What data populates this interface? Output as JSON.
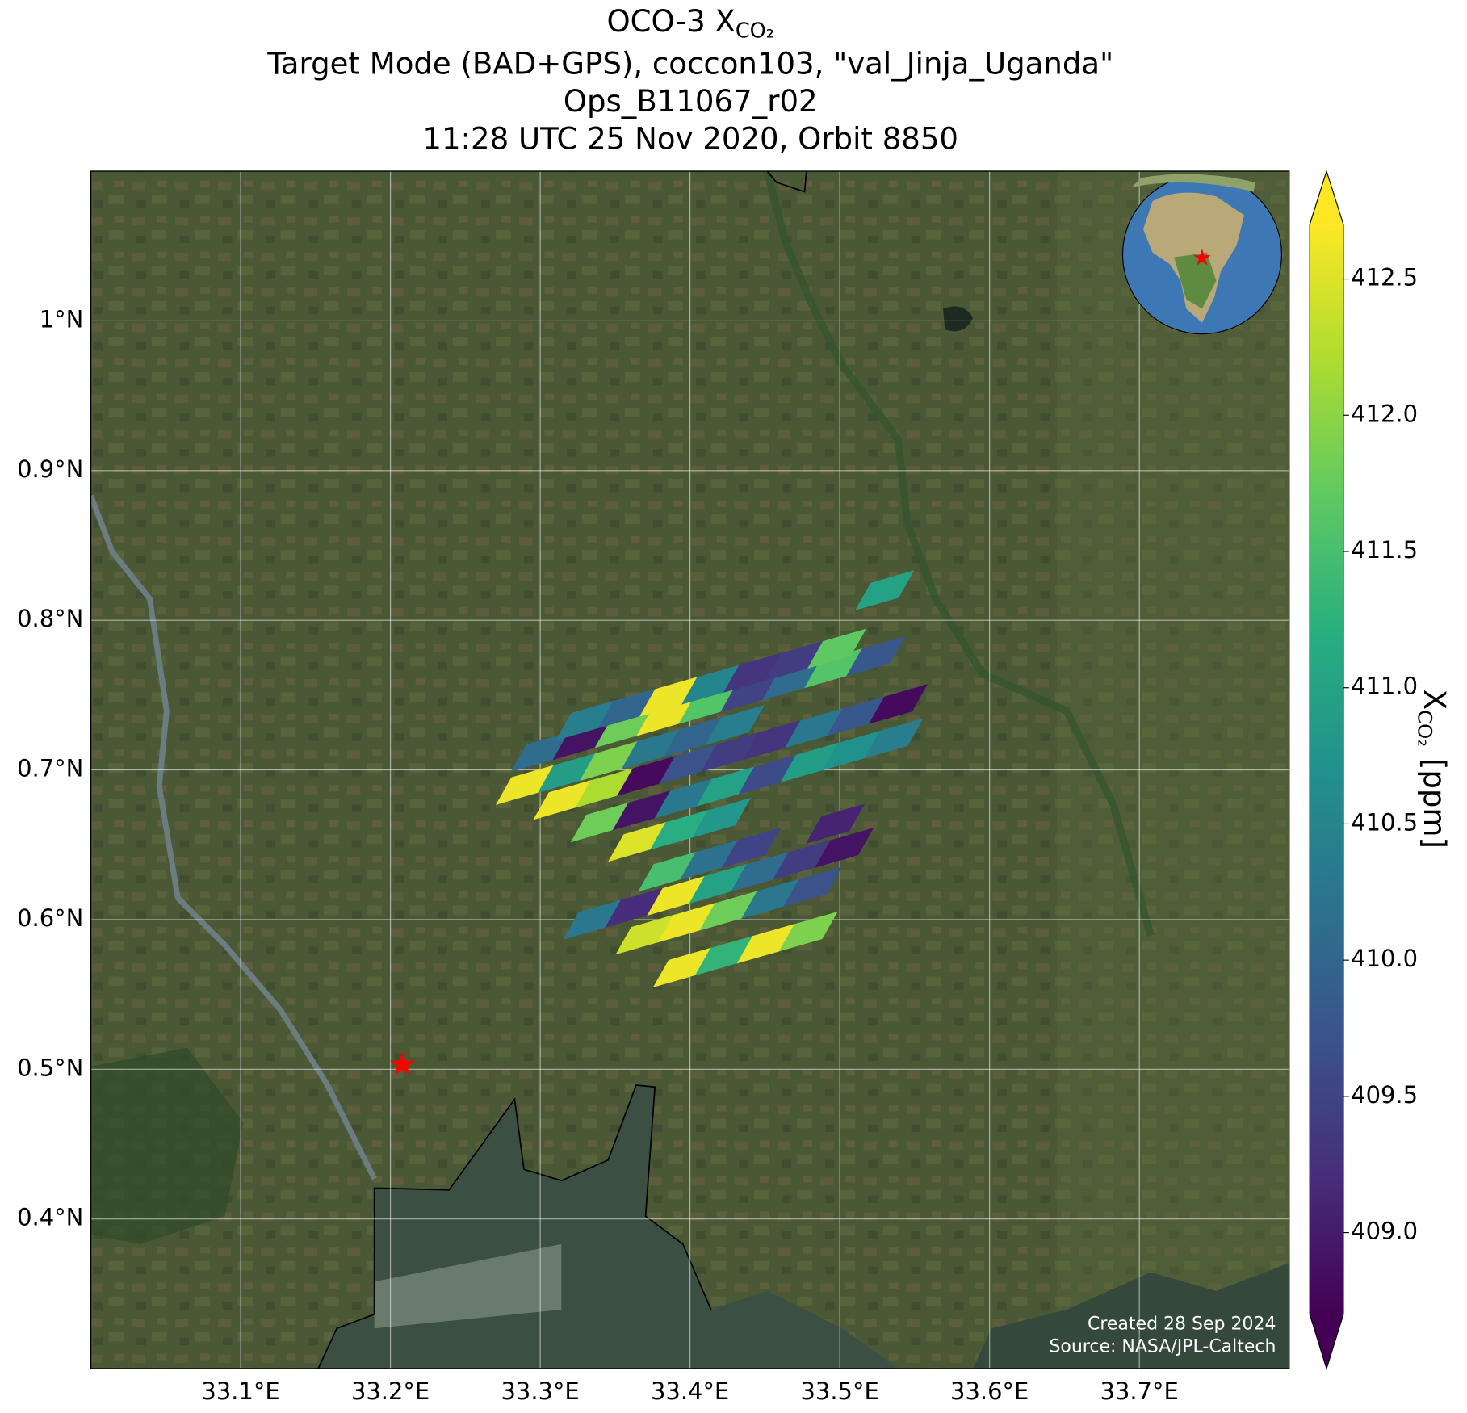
{
  "chart_data": {
    "type": "footprint-map",
    "title_main": "OCO-3 X",
    "title_subscript": "CO₂",
    "subtitle_lines": [
      "Target Mode (BAD+GPS), coccon103, \"val_Jinja_Uganda\"",
      "Ops_B11067_r02",
      "11:28 UTC 25 Nov 2020, Orbit 8850"
    ],
    "xlim": [
      33.0,
      33.8
    ],
    "ylim": [
      0.3,
      1.1
    ],
    "xticks": [
      {
        "value": 33.1,
        "label": "33.1°E"
      },
      {
        "value": 33.2,
        "label": "33.2°E"
      },
      {
        "value": 33.3,
        "label": "33.3°E"
      },
      {
        "value": 33.4,
        "label": "33.4°E"
      },
      {
        "value": 33.5,
        "label": "33.5°E"
      },
      {
        "value": 33.6,
        "label": "33.6°E"
      },
      {
        "value": 33.7,
        "label": "33.7°E"
      }
    ],
    "yticks": [
      {
        "value": 0.4,
        "label": "0.4°N"
      },
      {
        "value": 0.5,
        "label": "0.5°N"
      },
      {
        "value": 0.6,
        "label": "0.6°N"
      },
      {
        "value": 0.7,
        "label": "0.7°N"
      },
      {
        "value": 0.8,
        "label": "0.8°N"
      },
      {
        "value": 0.9,
        "label": "0.9°N"
      },
      {
        "value": 1.0,
        "label": "1°N"
      }
    ],
    "grid": true,
    "soundings": {
      "lon": [
        33.395,
        33.423,
        33.451,
        33.479,
        33.37,
        33.398,
        33.426,
        33.454,
        33.482,
        33.335,
        33.363,
        33.391,
        33.419,
        33.447,
        33.475,
        33.503,
        33.385,
        33.413,
        33.441,
        33.497,
        33.365,
        33.393,
        33.421,
        33.34,
        33.368,
        33.396,
        33.424,
        33.452,
        33.48,
        33.508,
        33.536,
        33.315,
        33.343,
        33.371,
        33.399,
        33.427,
        33.455,
        33.483,
        33.511,
        33.539,
        33.29,
        33.318,
        33.346,
        33.374,
        33.402,
        33.43,
        33.3,
        33.328,
        33.356,
        33.384,
        33.412,
        33.44,
        33.468,
        33.496,
        33.524,
        33.33,
        33.358,
        33.386,
        33.414,
        33.442,
        33.47,
        33.498,
        33.53
      ],
      "lat": [
        0.568,
        0.576,
        0.584,
        0.592,
        0.59,
        0.598,
        0.606,
        0.614,
        0.622,
        0.6,
        0.608,
        0.616,
        0.624,
        0.632,
        0.64,
        0.648,
        0.632,
        0.64,
        0.648,
        0.664,
        0.652,
        0.66,
        0.668,
        0.665,
        0.673,
        0.681,
        0.689,
        0.697,
        0.705,
        0.713,
        0.721,
        0.68,
        0.688,
        0.696,
        0.704,
        0.712,
        0.72,
        0.728,
        0.736,
        0.744,
        0.69,
        0.698,
        0.706,
        0.714,
        0.722,
        0.73,
        0.712,
        0.72,
        0.728,
        0.736,
        0.744,
        0.752,
        0.76,
        0.768,
        0.776,
        0.733,
        0.741,
        0.749,
        0.757,
        0.765,
        0.773,
        0.781,
        0.82
      ],
      "xco2": [
        412.6,
        411.3,
        412.6,
        411.9,
        412.4,
        412.6,
        411.8,
        410.3,
        409.7,
        410.3,
        409.2,
        412.6,
        411.0,
        410.1,
        409.4,
        408.9,
        411.5,
        410.2,
        409.5,
        409.1,
        412.5,
        411.2,
        410.8,
        411.8,
        408.9,
        410.3,
        411.0,
        409.6,
        410.9,
        410.7,
        410.4,
        412.6,
        412.2,
        408.8,
        409.7,
        409.4,
        409.3,
        410.3,
        409.8,
        408.8,
        412.6,
        410.9,
        411.9,
        410.3,
        410.0,
        410.4,
        410.1,
        408.9,
        411.8,
        412.6,
        411.6,
        409.5,
        410.1,
        411.6,
        409.8,
        410.4,
        410.0,
        412.6,
        410.5,
        409.3,
        409.4,
        411.7,
        411.0
      ]
    },
    "site": {
      "lon": 33.208,
      "lat": 0.503,
      "color": "#ff0000"
    },
    "clim": [
      408.7,
      412.7
    ],
    "colormap": [
      "#440154",
      "#472d7b",
      "#3b528b",
      "#2c728e",
      "#21918c",
      "#28ae80",
      "#5ec962",
      "#addc30",
      "#fde725"
    ],
    "colorbar_ticks": [
      {
        "value": 409.0,
        "label": "409.0"
      },
      409.5,
      {
        "value": 410.0,
        "label": "410.0"
      },
      410.5,
      {
        "value": 411.0,
        "label": "411.0"
      },
      411.5,
      {
        "value": 412.0,
        "label": "412.0"
      },
      412.5
    ],
    "colorbar_label": {
      "main": "X",
      "subscript": "CO₂",
      "unit": "[ppm]"
    },
    "credits": [
      "Created 28 Sep 2024",
      "Source: NASA/JPL-Caltech"
    ]
  }
}
